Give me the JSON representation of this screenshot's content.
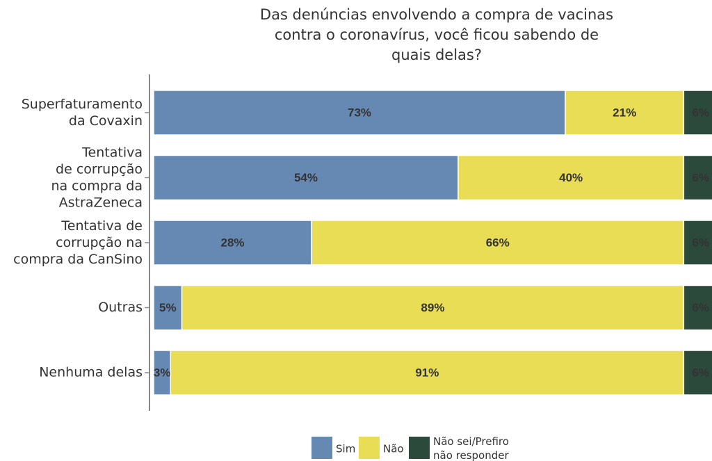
{
  "chart_data": {
    "type": "stacked_barh",
    "title": "Das denúncias envolvendo a compra de vacinas\ncontra o coronavírus, você ficou sabendo de\nquais delas?",
    "categories": [
      "Superfaturamento\nda Covaxin",
      "Tentativa\nde corrupção\nna compra da\nAstraZeneca",
      "Tentativa de\ncorrupção na\ncompra da CanSino",
      "Outras",
      "Nenhuma delas"
    ],
    "xlim": [
      0,
      100
    ],
    "legend": "bottom",
    "series": [
      {
        "name": "Sim",
        "color": "#6589b3",
        "values": [
          73,
          54,
          28,
          5,
          3
        ],
        "value_labels": [
          "73%",
          "54%",
          "28%",
          "5%",
          "3%"
        ]
      },
      {
        "name": "Não",
        "color": "#e8dd55",
        "values": [
          21,
          40,
          66,
          89,
          91
        ],
        "value_labels": [
          "21%",
          "40%",
          "66%",
          "89%",
          "91%"
        ]
      },
      {
        "name": "Não sei/Prefiro\nnão responder",
        "color": "#2b4a3c",
        "values": [
          6,
          6,
          6,
          6,
          6
        ],
        "value_labels": [
          "6%",
          "6%",
          "6%",
          "6%",
          "6%"
        ]
      }
    ]
  }
}
